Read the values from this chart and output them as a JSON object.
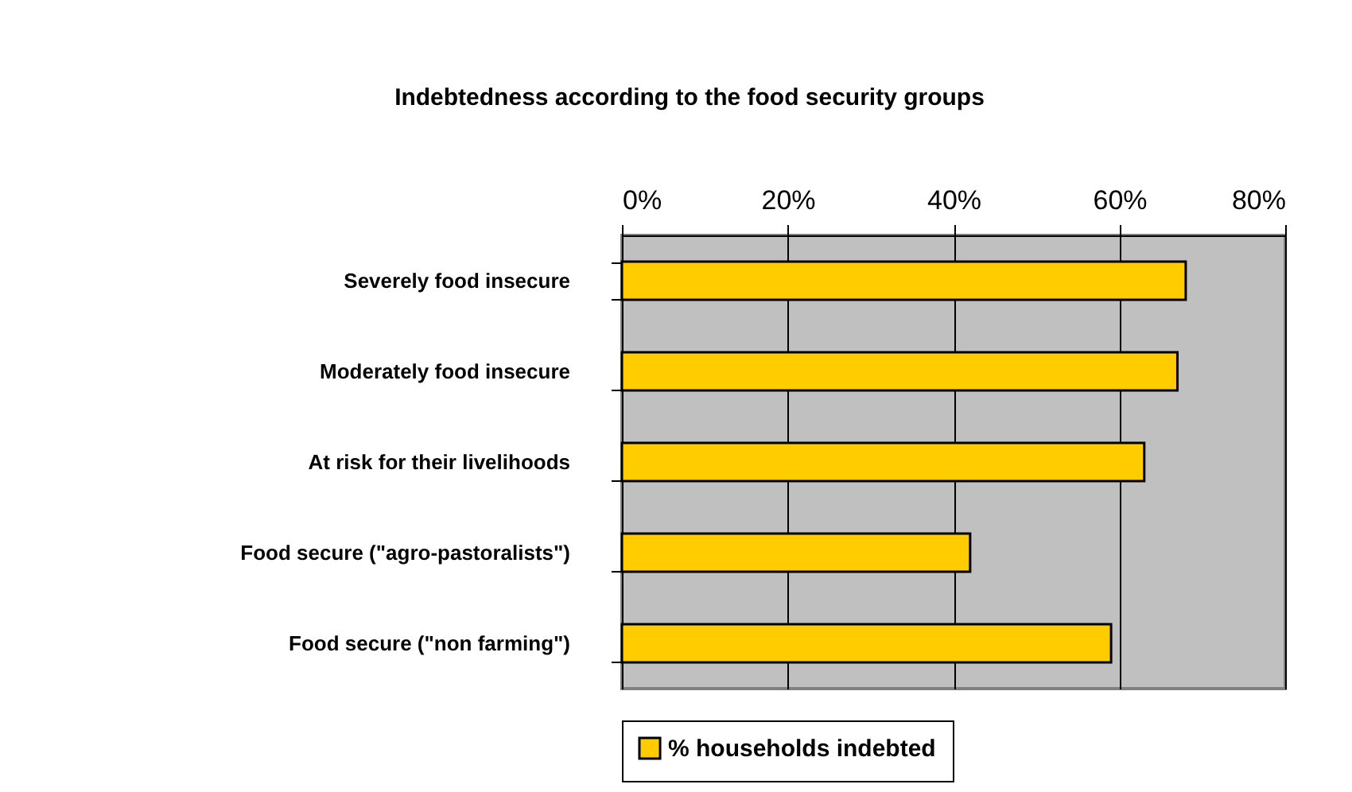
{
  "chart_data": {
    "type": "bar",
    "orientation": "horizontal",
    "title": "Indebtedness according to the food security groups",
    "categories": [
      "Severely food insecure",
      "Moderately food insecure",
      "At risk for their livelihoods",
      "Food secure (\"agro-pastoralists\")",
      "Food secure (\"non farming\")"
    ],
    "series": [
      {
        "name": "% households indebted",
        "color": "#ffcc00",
        "values": [
          68,
          67,
          63,
          42,
          59
        ]
      }
    ],
    "xlim": [
      0,
      80
    ],
    "xticks": [
      {
        "value": 0,
        "label": "0%"
      },
      {
        "value": 20,
        "label": "20%"
      },
      {
        "value": 40,
        "label": "40%"
      },
      {
        "value": 60,
        "label": "60%"
      },
      {
        "value": 80,
        "label": "80%"
      }
    ],
    "grid": "x",
    "legend": "bottom"
  }
}
